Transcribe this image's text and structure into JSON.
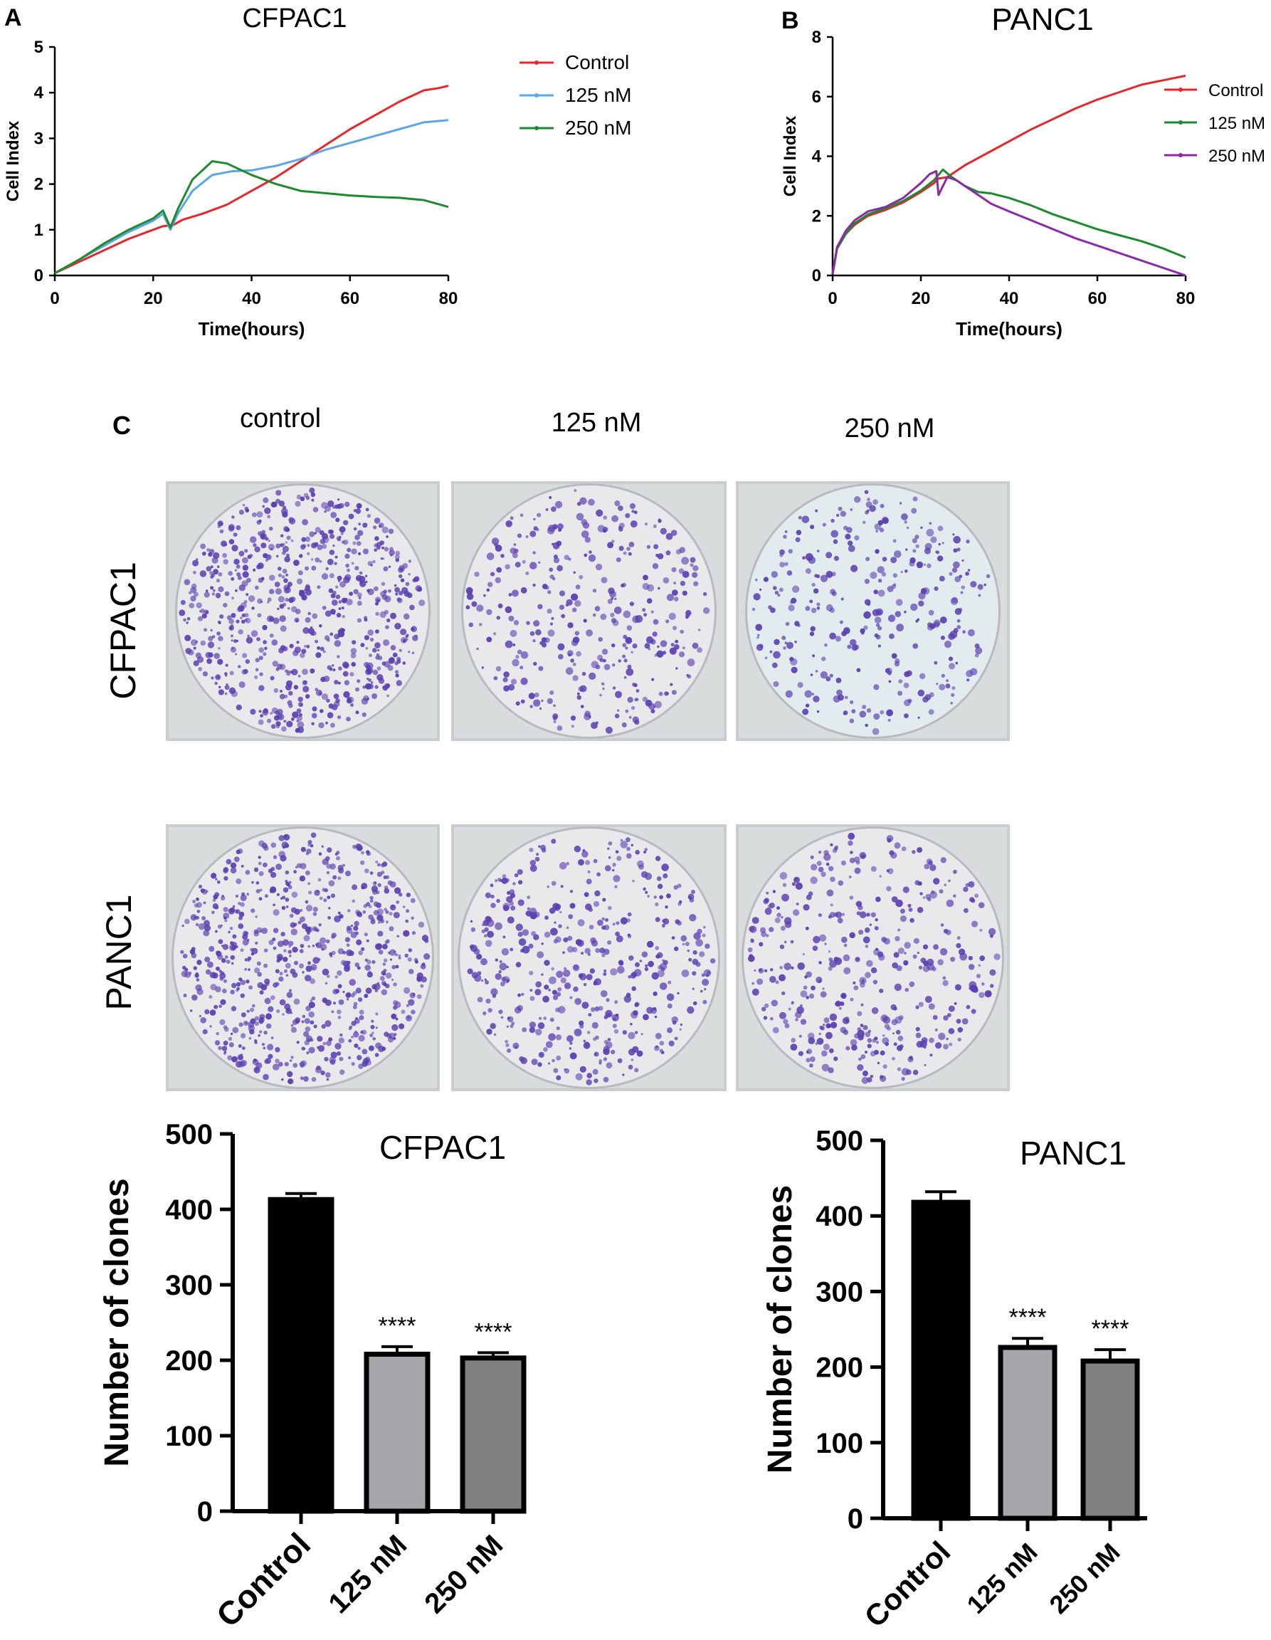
{
  "panels": {
    "a_letter": "A",
    "b_letter": "B",
    "c_letter": "C"
  },
  "plates": {
    "column_labels": [
      "control",
      "125 nM",
      "250 nM"
    ],
    "row_labels": [
      "CFPAC1",
      "PANC1"
    ],
    "stain_color": "#5a3fb0"
  },
  "chart_data": [
    {
      "id": "cfpac1-rtca",
      "type": "line",
      "title": "CFPAC1",
      "xlabel": "Time(hours)",
      "ylabel": "Cell Index",
      "xlim": [
        0,
        80
      ],
      "ylim": [
        0,
        5
      ],
      "xticks": [
        "0",
        "20",
        "40",
        "60",
        "80"
      ],
      "yticks": [
        "0",
        "1",
        "2",
        "3",
        "4",
        "5"
      ],
      "legend": "right",
      "series": [
        {
          "name": "Control",
          "color": "#e8262a",
          "x": [
            0,
            5,
            10,
            15,
            20,
            22,
            24,
            26,
            30,
            35,
            40,
            45,
            50,
            55,
            60,
            65,
            70,
            75,
            78,
            80
          ],
          "y": [
            0.05,
            0.3,
            0.55,
            0.8,
            1.0,
            1.08,
            1.1,
            1.22,
            1.35,
            1.55,
            1.85,
            2.15,
            2.5,
            2.85,
            3.2,
            3.5,
            3.8,
            4.05,
            4.1,
            4.15
          ]
        },
        {
          "name": "125 nM",
          "color": "#5aa6e6",
          "x": [
            0,
            5,
            10,
            15,
            20,
            22,
            23.5,
            25,
            28,
            32,
            36,
            40,
            45,
            50,
            55,
            60,
            65,
            70,
            75,
            80
          ],
          "y": [
            0.05,
            0.35,
            0.65,
            0.95,
            1.2,
            1.35,
            1.0,
            1.35,
            1.85,
            2.2,
            2.28,
            2.3,
            2.4,
            2.55,
            2.75,
            2.9,
            3.05,
            3.2,
            3.35,
            3.4
          ]
        },
        {
          "name": "250 nM",
          "color": "#1e8a2e",
          "x": [
            0,
            5,
            10,
            15,
            20,
            22,
            23.5,
            25,
            28,
            32,
            35,
            40,
            45,
            50,
            55,
            60,
            65,
            70,
            75,
            80
          ],
          "y": [
            0.05,
            0.35,
            0.7,
            1.0,
            1.25,
            1.42,
            1.05,
            1.45,
            2.1,
            2.5,
            2.45,
            2.2,
            2.0,
            1.85,
            1.8,
            1.75,
            1.72,
            1.7,
            1.65,
            1.5
          ]
        }
      ]
    },
    {
      "id": "panc1-rtca",
      "type": "line",
      "title": "PANC1",
      "xlabel": "Time(hours)",
      "ylabel": "Cell Index",
      "xlim": [
        0,
        80
      ],
      "ylim": [
        0,
        8
      ],
      "xticks": [
        "0",
        "20",
        "40",
        "60",
        "80"
      ],
      "yticks": [
        "0",
        "2",
        "4",
        "6",
        "8"
      ],
      "legend": "right",
      "series": [
        {
          "name": "Control",
          "color": "#e8262a",
          "x": [
            0,
            1,
            3,
            5,
            8,
            12,
            16,
            20,
            23,
            24,
            26,
            30,
            35,
            40,
            45,
            50,
            55,
            60,
            65,
            70,
            75,
            80
          ],
          "y": [
            0.05,
            0.9,
            1.4,
            1.7,
            2.0,
            2.2,
            2.45,
            2.8,
            3.1,
            3.25,
            3.3,
            3.7,
            4.1,
            4.5,
            4.9,
            5.25,
            5.6,
            5.9,
            6.15,
            6.4,
            6.55,
            6.7
          ]
        },
        {
          "name": "125 nM",
          "color": "#1e8a2e",
          "x": [
            0,
            1,
            3,
            5,
            8,
            12,
            16,
            20,
            23,
            25,
            27,
            30,
            33,
            36,
            40,
            45,
            50,
            55,
            60,
            65,
            70,
            75,
            80
          ],
          "y": [
            0.05,
            0.9,
            1.4,
            1.75,
            2.05,
            2.25,
            2.5,
            2.85,
            3.2,
            3.55,
            3.3,
            3.0,
            2.8,
            2.75,
            2.6,
            2.35,
            2.05,
            1.8,
            1.55,
            1.35,
            1.15,
            0.9,
            0.6
          ]
        },
        {
          "name": "250 nM",
          "color": "#8a2aa8",
          "x": [
            0,
            1,
            3,
            5,
            8,
            12,
            16,
            20,
            22,
            23.5,
            24,
            26,
            28,
            32,
            36,
            40,
            45,
            50,
            55,
            60,
            65,
            70,
            75,
            80
          ],
          "y": [
            0.05,
            0.95,
            1.5,
            1.85,
            2.15,
            2.3,
            2.6,
            3.1,
            3.4,
            3.5,
            2.7,
            3.3,
            3.2,
            2.8,
            2.4,
            2.15,
            1.85,
            1.55,
            1.25,
            1.0,
            0.75,
            0.5,
            0.25,
            0.0
          ]
        }
      ]
    },
    {
      "id": "cfpac1-clones",
      "type": "bar",
      "title": "CFPAC1",
      "xlabel": "",
      "ylabel": "Number of clones",
      "ylim": [
        0,
        500
      ],
      "yticks": [
        "0",
        "100",
        "200",
        "300",
        "400",
        "500"
      ],
      "categories": [
        "Control",
        "125 nM",
        "250 nM"
      ],
      "values": [
        413,
        208,
        203
      ],
      "errors": [
        8,
        10,
        7
      ],
      "significance": [
        "",
        "****",
        "****"
      ],
      "colors": [
        "#000000",
        "#a6a6aa",
        "#808080"
      ]
    },
    {
      "id": "panc1-clones",
      "type": "bar",
      "title": "PANC1",
      "xlabel": "",
      "ylabel": "Number of clones",
      "ylim": [
        0,
        500
      ],
      "yticks": [
        "0",
        "100",
        "200",
        "300",
        "400",
        "500"
      ],
      "categories": [
        "Control",
        "125 nM",
        "250 nM"
      ],
      "values": [
        418,
        226,
        208
      ],
      "errors": [
        14,
        12,
        15
      ],
      "significance": [
        "",
        "****",
        "****"
      ],
      "colors": [
        "#000000",
        "#a6a6aa",
        "#808080"
      ]
    }
  ]
}
